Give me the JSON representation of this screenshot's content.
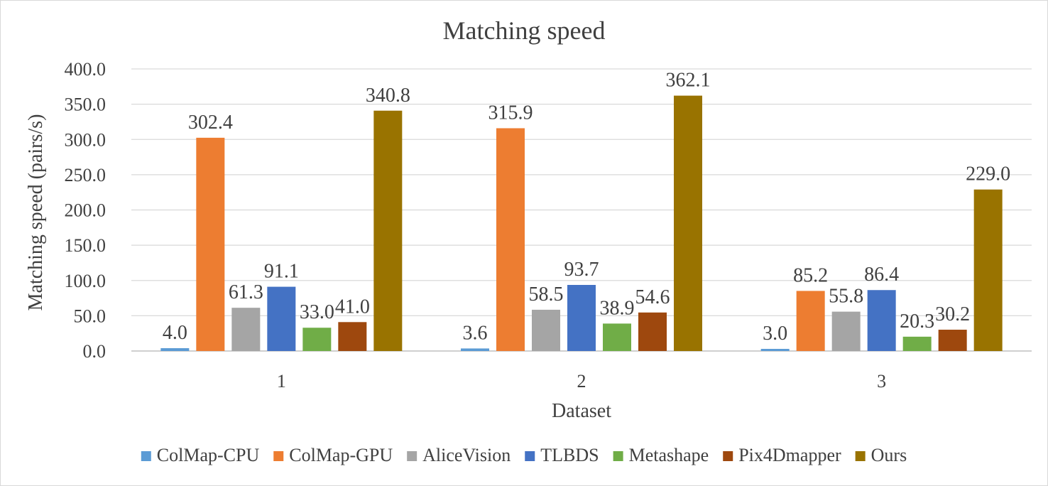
{
  "chart_data": {
    "type": "bar",
    "title": "Matching speed",
    "xlabel": "Dataset",
    "ylabel": "Matching speed (pairs/s)",
    "categories": [
      "1",
      "2",
      "3"
    ],
    "ylim": [
      0,
      400
    ],
    "yticks": [
      "0.0",
      "50.0",
      "100.0",
      "150.0",
      "200.0",
      "250.0",
      "300.0",
      "350.0",
      "400.0"
    ],
    "grid": true,
    "legend_position": "bottom",
    "series": [
      {
        "name": "ColMap-CPU",
        "color": "#5b9bd5",
        "values": [
          4.0,
          3.6,
          3.0
        ],
        "labels": [
          "4.0",
          "3.6",
          "3.0"
        ]
      },
      {
        "name": "ColMap-GPU",
        "color": "#ed7d31",
        "values": [
          302.4,
          315.9,
          85.2
        ],
        "labels": [
          "302.4",
          "315.9",
          "85.2"
        ]
      },
      {
        "name": "AliceVision",
        "color": "#a5a5a5",
        "values": [
          61.3,
          58.5,
          55.8
        ],
        "labels": [
          "61.3",
          "58.5",
          "55.8"
        ]
      },
      {
        "name": "TLBDS",
        "color": "#4472c4",
        "values": [
          91.1,
          93.7,
          86.4
        ],
        "labels": [
          "91.1",
          "93.7",
          "86.4"
        ]
      },
      {
        "name": "Metashape",
        "color": "#70ad47",
        "values": [
          33.0,
          38.9,
          20.3
        ],
        "labels": [
          "33.0",
          "38.9",
          "20.3"
        ]
      },
      {
        "name": "Pix4Dmapper",
        "color": "#9e480e",
        "values": [
          41.0,
          54.6,
          30.2
        ],
        "labels": [
          "41.0",
          "54.6",
          "30.2"
        ]
      },
      {
        "name": "Ours",
        "color": "#997300",
        "values": [
          340.8,
          362.1,
          229.0
        ],
        "labels": [
          "340.8",
          "362.1",
          "229.0"
        ]
      }
    ]
  }
}
